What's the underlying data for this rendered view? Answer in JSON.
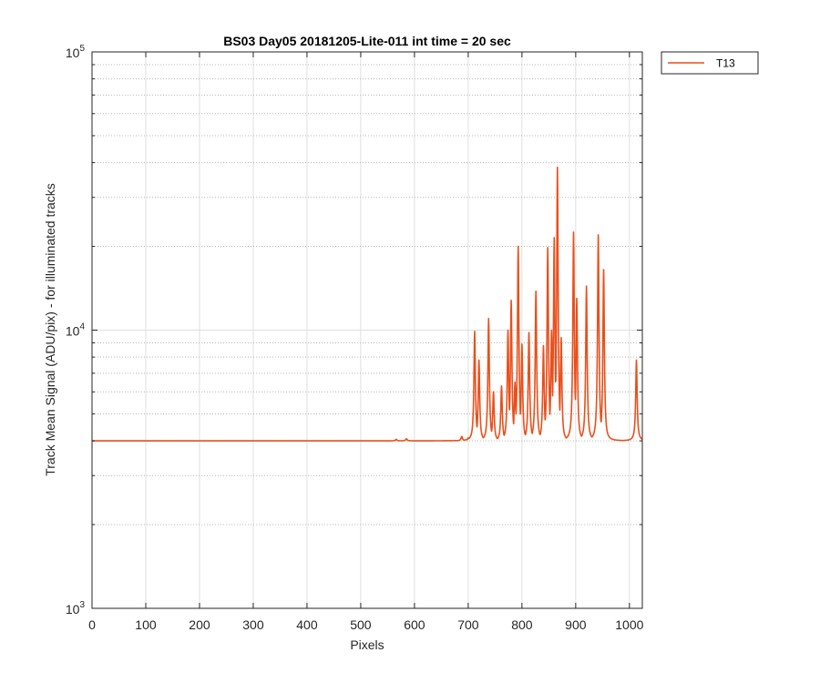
{
  "chart_data": {
    "type": "line",
    "title": "BS03 Day05 20181205-Lite-011 int time = 20 sec",
    "xlabel": "Pixels",
    "ylabel": "Track Mean Signal (ADU/pix) - for illuminated tracks",
    "xlim": [
      0,
      1024
    ],
    "ylim": [
      1000,
      100000
    ],
    "yscale": "log",
    "grid": true,
    "minor_grid": true,
    "legend_location": "outside-top-right",
    "x_ticks": [
      "0",
      "100",
      "200",
      "300",
      "400",
      "500",
      "600",
      "700",
      "800",
      "900",
      "1000"
    ],
    "x_tick_values": [
      0,
      100,
      200,
      300,
      400,
      500,
      600,
      700,
      800,
      900,
      1000
    ],
    "y_ticks": [
      {
        "value": 1000,
        "base": "10",
        "exponent": "3"
      },
      {
        "value": 10000,
        "base": "10",
        "exponent": "4"
      },
      {
        "value": 100000,
        "base": "10",
        "exponent": "5"
      }
    ],
    "series": [
      {
        "name": "T13",
        "color": "#ea4f1b",
        "baseline": 4000,
        "peaks": [
          {
            "x": 566,
            "y": 4050
          },
          {
            "x": 585,
            "y": 4070
          },
          {
            "x": 688,
            "y": 4150
          },
          {
            "x": 700,
            "y": 4100
          },
          {
            "x": 712,
            "y": 9900
          },
          {
            "x": 720,
            "y": 7800
          },
          {
            "x": 738,
            "y": 11000
          },
          {
            "x": 747,
            "y": 6000
          },
          {
            "x": 762,
            "y": 6300
          },
          {
            "x": 774,
            "y": 10000
          },
          {
            "x": 780,
            "y": 12800
          },
          {
            "x": 787,
            "y": 6500
          },
          {
            "x": 793,
            "y": 20000
          },
          {
            "x": 800,
            "y": 8900
          },
          {
            "x": 813,
            "y": 9800
          },
          {
            "x": 826,
            "y": 13800
          },
          {
            "x": 840,
            "y": 8800
          },
          {
            "x": 848,
            "y": 19800
          },
          {
            "x": 855,
            "y": 10000
          },
          {
            "x": 860,
            "y": 21500
          },
          {
            "x": 863,
            "y": 6500
          },
          {
            "x": 866,
            "y": 38500
          },
          {
            "x": 873,
            "y": 9400
          },
          {
            "x": 896,
            "y": 22500
          },
          {
            "x": 902,
            "y": 13000
          },
          {
            "x": 920,
            "y": 14400
          },
          {
            "x": 942,
            "y": 22000
          },
          {
            "x": 952,
            "y": 16500
          },
          {
            "x": 1013,
            "y": 7800
          }
        ]
      }
    ]
  }
}
